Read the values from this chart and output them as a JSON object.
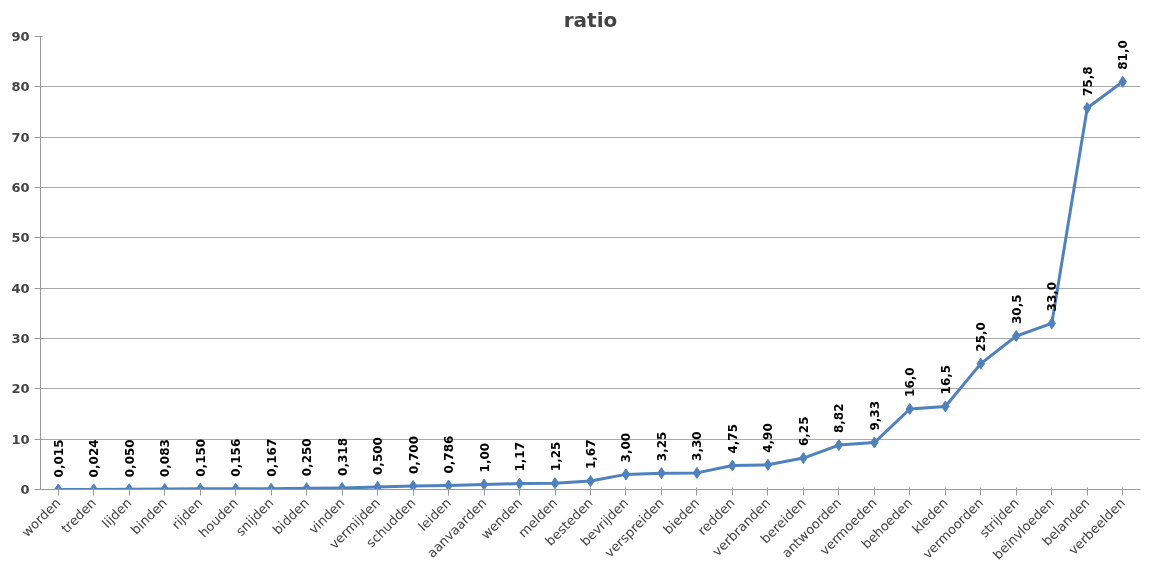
{
  "chart_data": {
    "type": "line",
    "title": "ratio",
    "categories": [
      "worden",
      "treden",
      "lijden",
      "binden",
      "rijden",
      "houden",
      "snijden",
      "bidden",
      "vinden",
      "vermijden",
      "schudden",
      "leiden",
      "aanvaarden",
      "wenden",
      "melden",
      "besteden",
      "bevrijden",
      "verspreiden",
      "bieden",
      "redden",
      "verbranden",
      "bereiden",
      "antwoorden",
      "vermoeden",
      "behoeden",
      "kleden",
      "vermoorden",
      "strijden",
      "beïnvloeden",
      "belanden",
      "verbeelden"
    ],
    "series": [
      {
        "color": "#4f81bd",
        "values": [
          0.015,
          0.024,
          0.05,
          0.083,
          0.15,
          0.156,
          0.167,
          0.25,
          0.318,
          0.5,
          0.7,
          0.786,
          1.0,
          1.17,
          1.25,
          1.67,
          3.0,
          3.25,
          3.3,
          4.75,
          4.9,
          6.25,
          8.82,
          9.33,
          16.0,
          16.5,
          25.0,
          30.5,
          33.0,
          75.8,
          81.0
        ],
        "value_labels": [
          "0,015",
          "0,024",
          "0,050",
          "0,083",
          "0,150",
          "0,156",
          "0,167",
          "0,250",
          "0,318",
          "0,500",
          "0,700",
          "0,786",
          "1,00",
          "1,17",
          "1,25",
          "1,67",
          "3,00",
          "3,25",
          "3,30",
          "4,75",
          "4,90",
          "6,25",
          "8,82",
          "9,33",
          "16,0",
          "16,5",
          "25,0",
          "30,5",
          "33,0",
          "75,8",
          "81,0"
        ]
      }
    ],
    "ylim": [
      0,
      90
    ],
    "yticks": [
      0,
      10,
      20,
      30,
      40,
      50,
      60,
      70,
      80,
      90
    ],
    "grid": "y",
    "marker": "diamond",
    "line_style": "solid"
  }
}
